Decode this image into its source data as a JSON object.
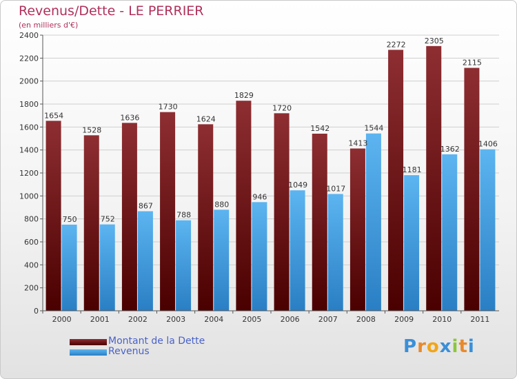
{
  "title": "Revenus/Dette - LE PERRIER",
  "subtitle": "(en milliers d'€)",
  "logo": {
    "letters": [
      "P",
      "r",
      "o",
      "x",
      "i",
      "t",
      "i"
    ],
    "colors": [
      "#3a8fd8",
      "#e8892a",
      "#f2a51a",
      "#3a8fd8",
      "#8cc63f",
      "#e8892a",
      "#3a8fd8"
    ]
  },
  "chart_data": {
    "type": "bar",
    "categories": [
      "2000",
      "2001",
      "2002",
      "2003",
      "2004",
      "2005",
      "2006",
      "2007",
      "2008",
      "2009",
      "2010",
      "2011"
    ],
    "series": [
      {
        "name": "Montant de la Dette",
        "color": "#7a1f24",
        "values": [
          1654,
          1528,
          1636,
          1730,
          1624,
          1829,
          1720,
          1542,
          1413,
          2272,
          2305,
          2115
        ]
      },
      {
        "name": "Revenus",
        "color": "#4aa3e6",
        "values": [
          750,
          752,
          867,
          788,
          880,
          946,
          1049,
          1017,
          1544,
          1181,
          1362,
          1406
        ]
      }
    ],
    "ylim": [
      0,
      2400
    ],
    "yticks": [
      0,
      200,
      400,
      600,
      800,
      1000,
      1200,
      1400,
      1600,
      1800,
      2000,
      2200,
      2400
    ],
    "grid": true,
    "legend_position": "bottom-left"
  }
}
